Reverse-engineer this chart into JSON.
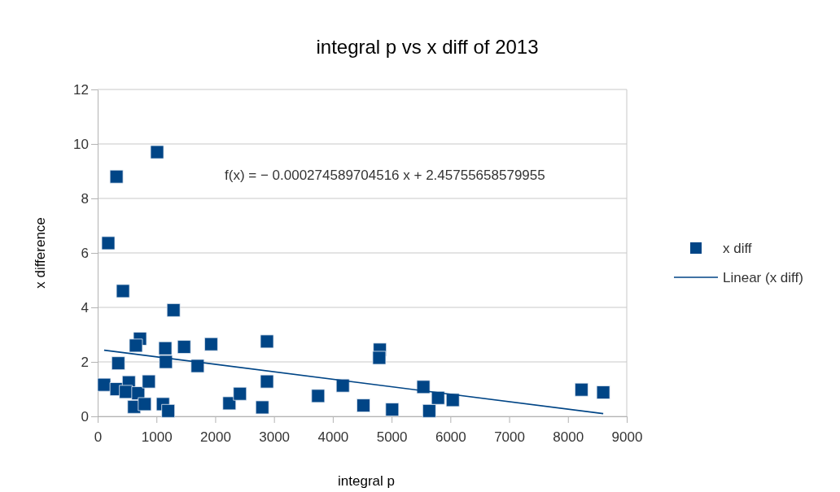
{
  "chart_data": {
    "type": "scatter",
    "title": "integral p vs x diff of 2013",
    "xlabel": "integral p",
    "ylabel": "x difference",
    "annotations": [
      "f(x) = − 0.000274589704516 x + 2.45755658579955"
    ],
    "xlim": [
      0,
      9000
    ],
    "xticks": [
      0,
      1000,
      2000,
      3000,
      4000,
      5000,
      6000,
      7000,
      8000,
      9000
    ],
    "ylim": [
      0,
      12
    ],
    "yticks": [
      0,
      2,
      4,
      6,
      8,
      10,
      12
    ],
    "grid": "y",
    "legend": "right",
    "series": [
      {
        "name": "x diff",
        "marker": "square",
        "color": "#004586",
        "x": [
          1011,
          320,
          180,
          430,
          1290,
          720,
          650,
          1150,
          1160,
          1470,
          1930,
          2880,
          350,
          1700,
          2880,
          110,
          320,
          530,
          480,
          690,
          870,
          620,
          800,
          1110,
          1200,
          2240,
          2420,
          2800,
          3750,
          4170,
          4520,
          4800,
          4790,
          5010,
          5540,
          5640,
          5790,
          6040,
          8230,
          8600
        ],
        "values": [
          9.7,
          8.8,
          6.36,
          4.6,
          3.9,
          2.85,
          2.6,
          2.5,
          2.0,
          2.55,
          2.65,
          2.75,
          1.95,
          1.85,
          1.28,
          1.16,
          1.0,
          1.25,
          0.9,
          0.85,
          1.28,
          0.35,
          0.45,
          0.45,
          0.2,
          0.48,
          0.83,
          0.33,
          0.75,
          1.13,
          0.4,
          2.45,
          2.15,
          0.25,
          1.08,
          0.2,
          0.68,
          0.6,
          0.98,
          0.88
        ]
      },
      {
        "name": "Linear (x diff)",
        "type": "line",
        "marker": "none",
        "color": "#004586",
        "x": [
          110,
          8600
        ],
        "values": [
          2.43,
          0.1
        ]
      }
    ]
  }
}
